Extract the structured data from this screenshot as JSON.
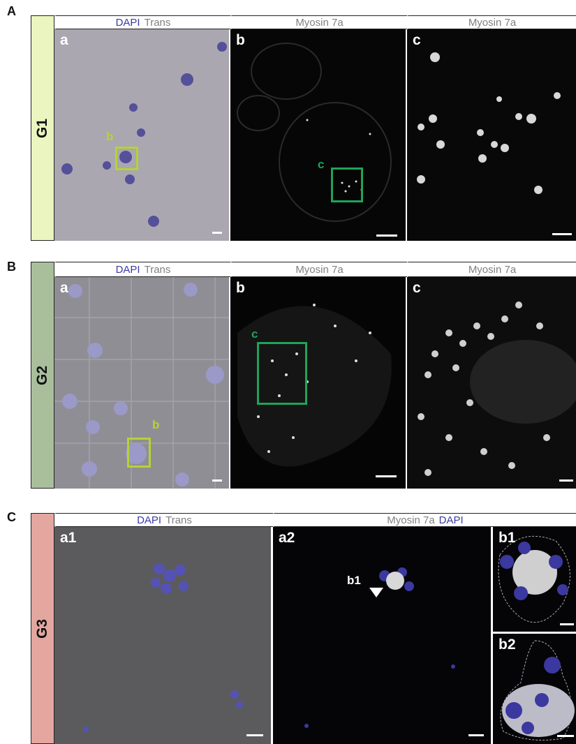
{
  "sections": [
    {
      "letter": "A",
      "group": "G1",
      "headers": [
        [
          "DAPI",
          "Trans"
        ],
        [
          "Myosin 7a"
        ],
        [
          "Myosin 7a"
        ]
      ],
      "panels": [
        "a",
        "b",
        "c"
      ],
      "boxes": [
        "b",
        "c"
      ]
    },
    {
      "letter": "B",
      "group": "G2",
      "headers": [
        [
          "DAPI",
          "Trans"
        ],
        [
          "Myosin 7a"
        ],
        [
          "Myosin 7a"
        ]
      ],
      "panels": [
        "a",
        "b",
        "c"
      ],
      "boxes": [
        "b",
        "c"
      ]
    },
    {
      "letter": "C",
      "group": "G3",
      "headers": [
        [
          "DAPI",
          "Trans"
        ],
        [
          "Myosin 7a",
          "DAPI"
        ]
      ],
      "panels": [
        "a1",
        "a2",
        "b1",
        "b2"
      ],
      "arrow": "b1"
    }
  ]
}
